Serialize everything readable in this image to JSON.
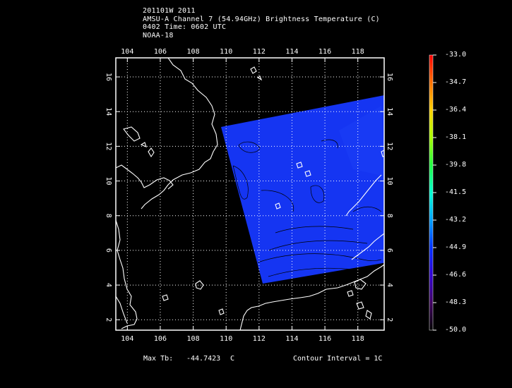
{
  "header": {
    "line1": "201101W 2011",
    "line2": "AMSU-A Channel 7 (54.94GHz) Brightness Temperature (C)",
    "line3": "0402 Time: 0602 UTC",
    "line4": "NOAA-18"
  },
  "map": {
    "lon_ticks": [
      "104",
      "106",
      "108",
      "110",
      "112",
      "114",
      "116",
      "118"
    ],
    "lat_ticks": [
      "2",
      "4",
      "6",
      "8",
      "10",
      "12",
      "14",
      "16"
    ],
    "lon_range": [
      103.3,
      119.6
    ],
    "lat_range": [
      1.4,
      17.1
    ],
    "swath_color": "#1535f2",
    "coast_color": "#ffffff",
    "grid": "dotted"
  },
  "colorbar": {
    "labels": [
      "-33.0",
      "-34.7",
      "-36.4",
      "-38.1",
      "-39.8",
      "-41.5",
      "-43.2",
      "-44.9",
      "-46.6",
      "-48.3",
      "-50.0"
    ],
    "colors": [
      "#ff0000",
      "#ff7000",
      "#ffd000",
      "#a8ff00",
      "#20ff40",
      "#00ffd0",
      "#00a0ff",
      "#0030ff",
      "#3000d0",
      "#400060",
      "#000000"
    ]
  },
  "footer": {
    "max_label": "Max Tb:",
    "max_value": "-44.7423",
    "max_unit": "C",
    "contour": "Contour Interval = 1C"
  }
}
